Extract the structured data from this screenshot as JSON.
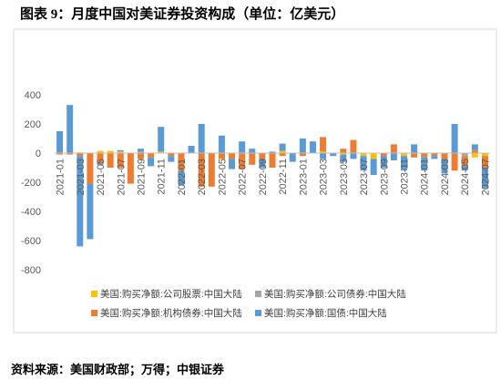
{
  "chart_data": {
    "type": "stacked-bar",
    "title": "图表 9：月度中国对美证券投资构成（单位：亿美元）",
    "source": "资料来源：美国财政部；万得；中银证券",
    "categories": [
      "2021-01",
      null,
      "2021-03",
      null,
      "2021-05",
      null,
      "2021-07",
      null,
      "2021-09",
      null,
      "2021-11",
      null,
      "2022-01",
      null,
      "2022-03",
      null,
      "2022-05",
      null,
      "2022-07",
      null,
      "2022-09",
      null,
      "2022-11",
      null,
      "2023-01",
      null,
      "2023-03",
      null,
      "2023-05",
      null,
      "2023-07",
      null,
      "2023-09",
      null,
      "2023-11",
      null,
      "2024-01",
      null,
      "2024-03",
      null,
      "2024-05",
      null,
      "2024-07"
    ],
    "series": [
      {
        "name": "美国:购买净额:公司股票:中国大陆",
        "color": "#ffc000",
        "values": [
          0,
          0,
          5,
          0,
          15,
          15,
          10,
          0,
          0,
          0,
          10,
          0,
          0,
          0,
          0,
          0,
          0,
          0,
          0,
          0,
          0,
          0,
          15,
          0,
          0,
          0,
          10,
          0,
          -10,
          0,
          -20,
          -40,
          0,
          0,
          -20,
          0,
          0,
          0,
          0,
          0,
          0,
          -30,
          -20
        ]
      },
      {
        "name": "美国:购买净额:公司债券:中国大陆",
        "color": "#a5a5a5",
        "values": [
          0,
          0,
          0,
          0,
          0,
          0,
          0,
          0,
          10,
          0,
          0,
          0,
          0,
          0,
          0,
          0,
          0,
          0,
          0,
          0,
          0,
          0,
          0,
          0,
          0,
          0,
          0,
          0,
          0,
          0,
          0,
          0,
          0,
          0,
          0,
          0,
          0,
          0,
          0,
          0,
          -20,
          0,
          0
        ]
      },
      {
        "name": "美国:购买净额:机构债券:中国大陆",
        "color": "#ed7d31",
        "values": [
          -10,
          -10,
          -20,
          -210,
          -70,
          -100,
          -100,
          -210,
          -40,
          -30,
          0,
          -20,
          -120,
          0,
          -230,
          -230,
          -40,
          -40,
          -110,
          -80,
          -40,
          -100,
          -20,
          0,
          -20,
          0,
          100,
          0,
          30,
          90,
          0,
          0,
          -20,
          60,
          0,
          -30,
          -30,
          -20,
          -40,
          -120,
          -70,
          20,
          -80
        ]
      },
      {
        "name": "美国:购买净额:国债:中国大陆",
        "color": "#5b9bd5",
        "values": [
          150,
          330,
          -620,
          -380,
          -10,
          0,
          10,
          0,
          20,
          -60,
          170,
          -40,
          -100,
          50,
          200,
          0,
          120,
          -70,
          80,
          30,
          -60,
          10,
          50,
          -60,
          100,
          80,
          -40,
          -20,
          -50,
          -40,
          -100,
          -110,
          -80,
          -50,
          -100,
          60,
          -90,
          -20,
          -100,
          200,
          -30,
          40,
          -140
        ]
      }
    ],
    "ylim": [
      -800,
      400
    ],
    "yticks": [
      400,
      200,
      0,
      -200,
      -400,
      -600,
      -800
    ],
    "grid": false
  }
}
